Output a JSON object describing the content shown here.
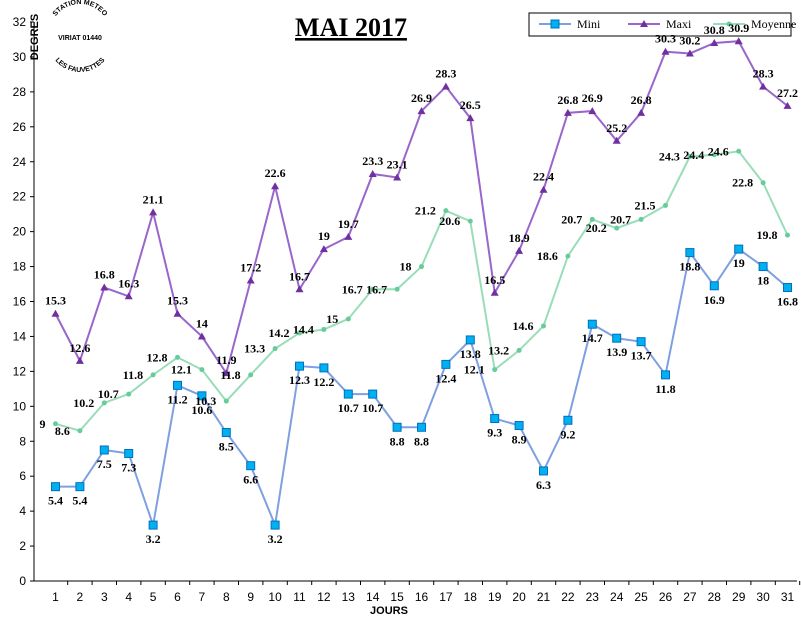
{
  "logo": {
    "top_text": "STATION METEO",
    "middle_text": "VIRIAT 01440",
    "bottom_text": "LES FAUVETTES"
  },
  "chart_data": {
    "type": "line",
    "title": "MAI 2017",
    "xlabel": "JOURS",
    "ylabel": "DEGRES",
    "ylim": [
      0,
      32
    ],
    "ytick_step": 2,
    "grid": false,
    "legend_position": "top-right",
    "x": [
      1,
      2,
      3,
      4,
      5,
      6,
      7,
      8,
      9,
      10,
      11,
      12,
      13,
      14,
      15,
      16,
      17,
      18,
      19,
      20,
      21,
      22,
      23,
      24,
      25,
      26,
      27,
      28,
      29,
      30,
      31
    ],
    "series": [
      {
        "name": "Mini",
        "color": "#7FA0E0",
        "marker_color": "#00B0F0",
        "marker": "square",
        "label_position": "below",
        "values": [
          5.4,
          5.4,
          7.5,
          7.3,
          3.2,
          11.2,
          10.6,
          8.5,
          6.6,
          3.2,
          12.3,
          12.2,
          10.7,
          10.7,
          8.8,
          8.8,
          12.4,
          13.8,
          9.3,
          8.9,
          6.3,
          9.2,
          14.7,
          13.9,
          13.7,
          11.8,
          18.8,
          16.9,
          19,
          18,
          16.8
        ]
      },
      {
        "name": "Maxi",
        "color": "#9966CC",
        "marker_color": "#7030A0",
        "marker": "triangle",
        "label_position": "above",
        "values": [
          15.3,
          12.6,
          16.8,
          16.3,
          21.1,
          15.3,
          14,
          11.9,
          17.2,
          22.6,
          16.7,
          19,
          19.7,
          23.3,
          23.1,
          26.9,
          28.3,
          26.5,
          16.5,
          18.9,
          22.4,
          26.8,
          26.9,
          25.2,
          26.8,
          30.3,
          30.2,
          30.8,
          30.9,
          28.3,
          27.2
        ]
      },
      {
        "name": "Moyenne",
        "color": "#99DDB8",
        "marker_color": "#66CC99",
        "marker": "dot",
        "label_position": "left",
        "values": [
          9,
          8.6,
          10.2,
          10.7,
          11.8,
          12.8,
          12.1,
          10.3,
          11.8,
          13.3,
          14.2,
          14.4,
          15,
          16.7,
          16.7,
          18,
          21.2,
          20.6,
          12.1,
          13.2,
          14.6,
          18.6,
          20.7,
          20.2,
          20.7,
          21.5,
          24.3,
          24.4,
          24.6,
          22.8,
          19.8
        ]
      }
    ]
  }
}
